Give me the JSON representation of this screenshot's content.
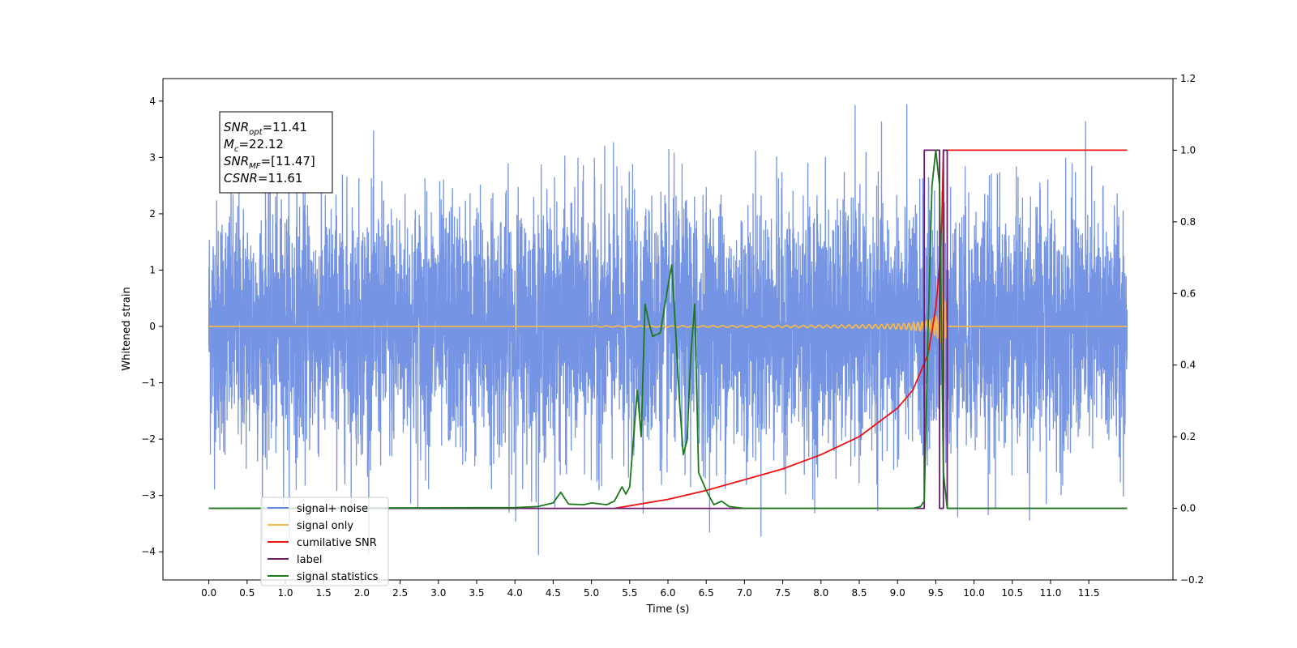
{
  "chart_data": {
    "type": "line",
    "title": "",
    "xlabel": "Time (s)",
    "ylabel": "Whitened strain",
    "y2label": "",
    "xlim": [
      -0.6,
      12.6
    ],
    "ylim": [
      -4.5,
      4.4
    ],
    "y2lim": [
      -0.2,
      1.2
    ],
    "x_ticks": [
      "0.0",
      "0.5",
      "1.0",
      "1.5",
      "2.0",
      "2.5",
      "3.0",
      "3.5",
      "4.0",
      "4.5",
      "5.0",
      "5.5",
      "6.0",
      "6.5",
      "7.0",
      "7.5",
      "8.0",
      "8.5",
      "9.0",
      "9.5",
      "10.0",
      "10.5",
      "11.0",
      "11.5"
    ],
    "y_ticks": [
      "4",
      "3",
      "2",
      "1",
      "0",
      "−1",
      "−2",
      "−3",
      "−4"
    ],
    "y2_ticks": [
      "1.2",
      "1.0",
      "0.8",
      "0.6",
      "0.4",
      "0.2",
      "0.0",
      "−0.2"
    ],
    "grid": false,
    "legend_position": "lower-left",
    "annotation": {
      "lines": [
        {
          "sym": "SNR",
          "sub": "opt",
          "value": "=11.41"
        },
        {
          "sym": "M",
          "sub": "c",
          "value": "=22.12"
        },
        {
          "sym": "SNR",
          "sub": "MF",
          "value": "=[11.47]"
        },
        {
          "sym": "CSNR",
          "sub": "",
          "value": "=11.61"
        }
      ]
    },
    "series": [
      {
        "name": "signal+ noise",
        "color": "#6688e0",
        "axis": "left",
        "kind": "noise",
        "x_range": [
          0,
          12
        ],
        "amplitude": 1.1
      },
      {
        "name": "signal only",
        "color": "#f5b84a",
        "axis": "left",
        "kind": "chirp",
        "x_range": [
          0,
          12
        ],
        "peak_time": 9.6
      },
      {
        "name": "cumilative SNR",
        "color": "#ee1111",
        "axis": "right",
        "x": [
          5.3,
          6.0,
          6.5,
          7.0,
          7.5,
          8.0,
          8.5,
          9.0,
          9.2,
          9.4,
          9.5,
          9.55,
          9.58,
          9.6,
          9.6,
          12.0
        ],
        "y": [
          0.0,
          0.025,
          0.05,
          0.08,
          0.11,
          0.15,
          0.2,
          0.28,
          0.33,
          0.43,
          0.56,
          0.68,
          0.8,
          1.0,
          1.0,
          1.0
        ]
      },
      {
        "name": "label",
        "color": "#6a1b6a",
        "axis": "right",
        "x": [
          0,
          9.35,
          9.35,
          9.55,
          9.55,
          9.6,
          9.6,
          9.65,
          9.65,
          12.0
        ],
        "y": [
          0.0,
          0.0,
          1.0,
          1.0,
          0.0,
          0.0,
          1.0,
          1.0,
          0.0,
          0.0
        ]
      },
      {
        "name": "signal statistics",
        "color": "#1a7a1a",
        "axis": "right",
        "x": [
          0,
          4.0,
          4.3,
          4.5,
          4.6,
          4.7,
          4.9,
          5.0,
          5.2,
          5.3,
          5.4,
          5.45,
          5.5,
          5.6,
          5.65,
          5.7,
          5.75,
          5.8,
          5.9,
          6.0,
          6.05,
          6.1,
          6.15,
          6.2,
          6.25,
          6.3,
          6.35,
          6.4,
          6.5,
          6.6,
          6.7,
          6.8,
          7.0,
          9.2,
          9.3,
          9.35,
          9.4,
          9.45,
          9.5,
          9.55,
          9.6,
          9.65,
          9.7,
          12.0
        ],
        "y": [
          0.0,
          0.002,
          0.005,
          0.015,
          0.045,
          0.012,
          0.01,
          0.015,
          0.01,
          0.02,
          0.06,
          0.04,
          0.06,
          0.33,
          0.2,
          0.57,
          0.52,
          0.48,
          0.49,
          0.62,
          0.68,
          0.5,
          0.3,
          0.15,
          0.19,
          0.43,
          0.57,
          0.1,
          0.05,
          0.01,
          0.02,
          0.005,
          0.0,
          0.0,
          0.005,
          0.02,
          0.5,
          0.9,
          1.0,
          0.9,
          0.1,
          0.0,
          0.0,
          0.0
        ]
      }
    ]
  }
}
